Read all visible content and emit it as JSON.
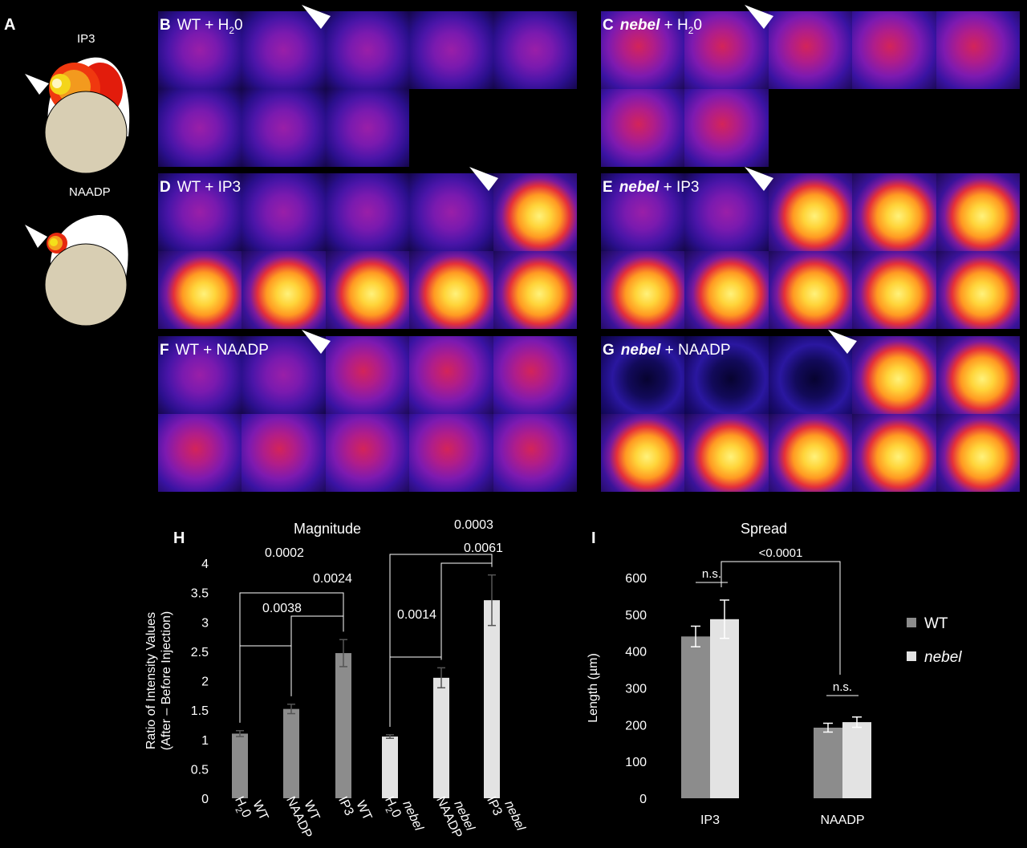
{
  "panel_a": {
    "letter": "A",
    "ip3_label": "IP3",
    "naadp_label": "NAADP"
  },
  "imaging_panels": [
    {
      "id": "B",
      "letter": "B",
      "title_main": "WT",
      "title_rest": " + H",
      "title_sub": "2",
      "title_end": "0",
      "italic": false,
      "rows": 2,
      "frames": 8,
      "arrow_after": 2,
      "bright_frames": []
    },
    {
      "id": "C",
      "letter": "C",
      "title_main": "nebel",
      "title_rest": " + H",
      "title_sub": "2",
      "title_end": "0",
      "italic": true,
      "rows": 2,
      "frames": 7,
      "arrow_after": 2,
      "bright_frames": []
    },
    {
      "id": "D",
      "letter": "D",
      "title_main": "WT",
      "title_rest": " + IP3",
      "title_sub": "",
      "title_end": "",
      "italic": false,
      "rows": 2,
      "frames": 10,
      "arrow_after": 4,
      "bright_frames": [
        4,
        5,
        6,
        7,
        8,
        9
      ]
    },
    {
      "id": "E",
      "letter": "E",
      "title_main": "nebel",
      "title_rest": " + IP3",
      "title_sub": "",
      "title_end": "",
      "italic": true,
      "rows": 2,
      "frames": 10,
      "arrow_after": 2,
      "bright_frames": [
        2,
        3,
        4,
        5,
        6,
        7,
        8,
        9
      ]
    },
    {
      "id": "F",
      "letter": "F",
      "title_main": "WT",
      "title_rest": " + NAADP",
      "title_sub": "",
      "title_end": "",
      "italic": false,
      "rows": 2,
      "frames": 10,
      "arrow_after": 2,
      "bright_frames": []
    },
    {
      "id": "G",
      "letter": "G",
      "title_main": "nebel",
      "title_rest": " + NAADP",
      "title_sub": "",
      "title_end": "",
      "italic": true,
      "rows": 2,
      "frames": 10,
      "arrow_after": 3,
      "bright_frames": [
        3,
        4,
        5,
        6,
        7,
        8,
        9
      ]
    }
  ],
  "chart_data": [
    {
      "panel": "H",
      "type": "bar",
      "title": "Magnitude",
      "ylabel_line1": "Ratio of Intensity Values",
      "ylabel_line2": "(After – Before Injection)",
      "ylim": [
        0,
        4
      ],
      "yticks": [
        "0",
        "0.5",
        "1",
        "1.5",
        "2",
        "2.5",
        "3",
        "3.5",
        "4"
      ],
      "categories": [
        {
          "name": "WT",
          "cond": "H",
          "sub": "2",
          "end": "0",
          "italic": false
        },
        {
          "name": "WT",
          "cond": "NAADP",
          "sub": "",
          "end": "",
          "italic": false
        },
        {
          "name": "WT",
          "cond": "IP3",
          "sub": "",
          "end": "",
          "italic": false
        },
        {
          "name": "nebel",
          "cond": "H",
          "sub": "2",
          "end": "0",
          "italic": true
        },
        {
          "name": "nebel",
          "cond": "NAADP",
          "sub": "",
          "end": "",
          "italic": true
        },
        {
          "name": "nebel",
          "cond": "IP3",
          "sub": "",
          "end": "",
          "italic": true
        }
      ],
      "values": [
        1.1,
        1.52,
        2.47,
        1.05,
        2.05,
        3.37
      ],
      "errors": [
        0.05,
        0.08,
        0.23,
        0.03,
        0.17,
        0.43
      ],
      "series_colors": [
        "#8c8c8c",
        "#8c8c8c",
        "#8c8c8c",
        "#e3e3e3",
        "#e3e3e3",
        "#e3e3e3"
      ],
      "comparisons": [
        {
          "from": 0,
          "to": 1,
          "p": "0.0038"
        },
        {
          "from": 1,
          "to": 2,
          "p": "0.0024"
        },
        {
          "from": 0,
          "to": 2,
          "p": "0.0002"
        },
        {
          "from": 3,
          "to": 4,
          "p": "0.0014"
        },
        {
          "from": 4,
          "to": 5,
          "p": "0.0061"
        },
        {
          "from": 3,
          "to": 5,
          "p": "0.0003"
        }
      ]
    },
    {
      "panel": "I",
      "type": "bar",
      "title": "Spread",
      "ylabel": "Length (µm)",
      "ylim": [
        0,
        600
      ],
      "yticks": [
        "0",
        "100",
        "200",
        "300",
        "400",
        "500",
        "600"
      ],
      "categories": [
        "IP3",
        "NAADP"
      ],
      "series": [
        {
          "name": "WT",
          "italic": false,
          "color": "#8c8c8c",
          "values": [
            440,
            192
          ],
          "errors": [
            28,
            12
          ]
        },
        {
          "name": "nebel",
          "italic": true,
          "color": "#e3e3e3",
          "values": [
            487,
            207
          ],
          "errors": [
            52,
            14
          ]
        }
      ],
      "comparisons": [
        {
          "label": "n.s.",
          "scope": "IP3"
        },
        {
          "label": "n.s.",
          "scope": "NAADP"
        },
        {
          "label": "<0.0001",
          "scope": "across"
        }
      ],
      "legend_position": "right"
    }
  ]
}
